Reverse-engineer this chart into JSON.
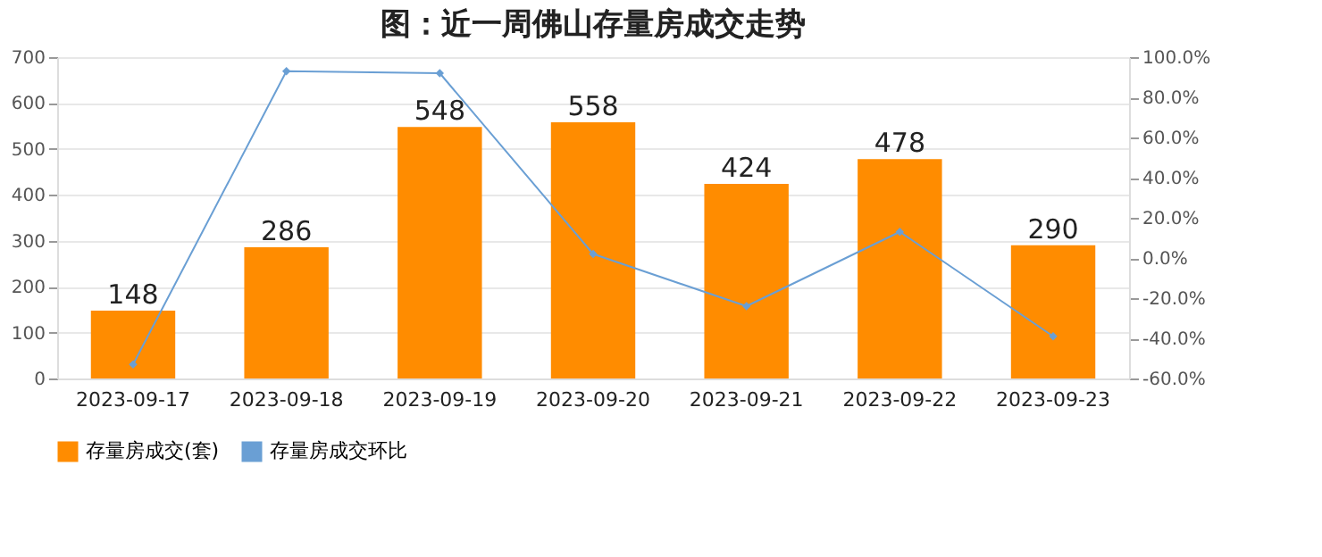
{
  "chart_data": {
    "type": "bar",
    "title": "图：近一周佛山存量房成交走势",
    "categories": [
      "2023-09-17",
      "2023-09-18",
      "2023-09-19",
      "2023-09-20",
      "2023-09-21",
      "2023-09-22",
      "2023-09-23"
    ],
    "series": [
      {
        "name": "存量房成交(套)",
        "color": "#ff8c00",
        "values": [
          148,
          286,
          548,
          558,
          424,
          478,
          290
        ],
        "data_labels": true
      },
      {
        "name": "存量房成交环比",
        "type": "line",
        "axis": "y2",
        "color": "#6a9fd4",
        "marker": "diamond",
        "values": [
          -53,
          93,
          92,
          2,
          -24,
          13,
          -39
        ]
      }
    ],
    "ylim": [
      0,
      700
    ],
    "yticks": [
      0,
      100,
      200,
      300,
      400,
      500,
      600,
      700
    ],
    "y2lim": [
      -60,
      100
    ],
    "y2ticks": [
      {
        "value": -60,
        "label": "-60.0%"
      },
      {
        "value": -40,
        "label": "-40.0%"
      },
      {
        "value": -20,
        "label": "-20.0%"
      },
      {
        "value": 0,
        "label": "0.0%"
      },
      {
        "value": 20,
        "label": "20.0%"
      },
      {
        "value": 40,
        "label": "40.0%"
      },
      {
        "value": 60,
        "label": "60.0%"
      },
      {
        "value": 80,
        "label": "80.0%"
      },
      {
        "value": 100,
        "label": "100.0%"
      }
    ],
    "grid": "y",
    "legend": "bottom"
  }
}
